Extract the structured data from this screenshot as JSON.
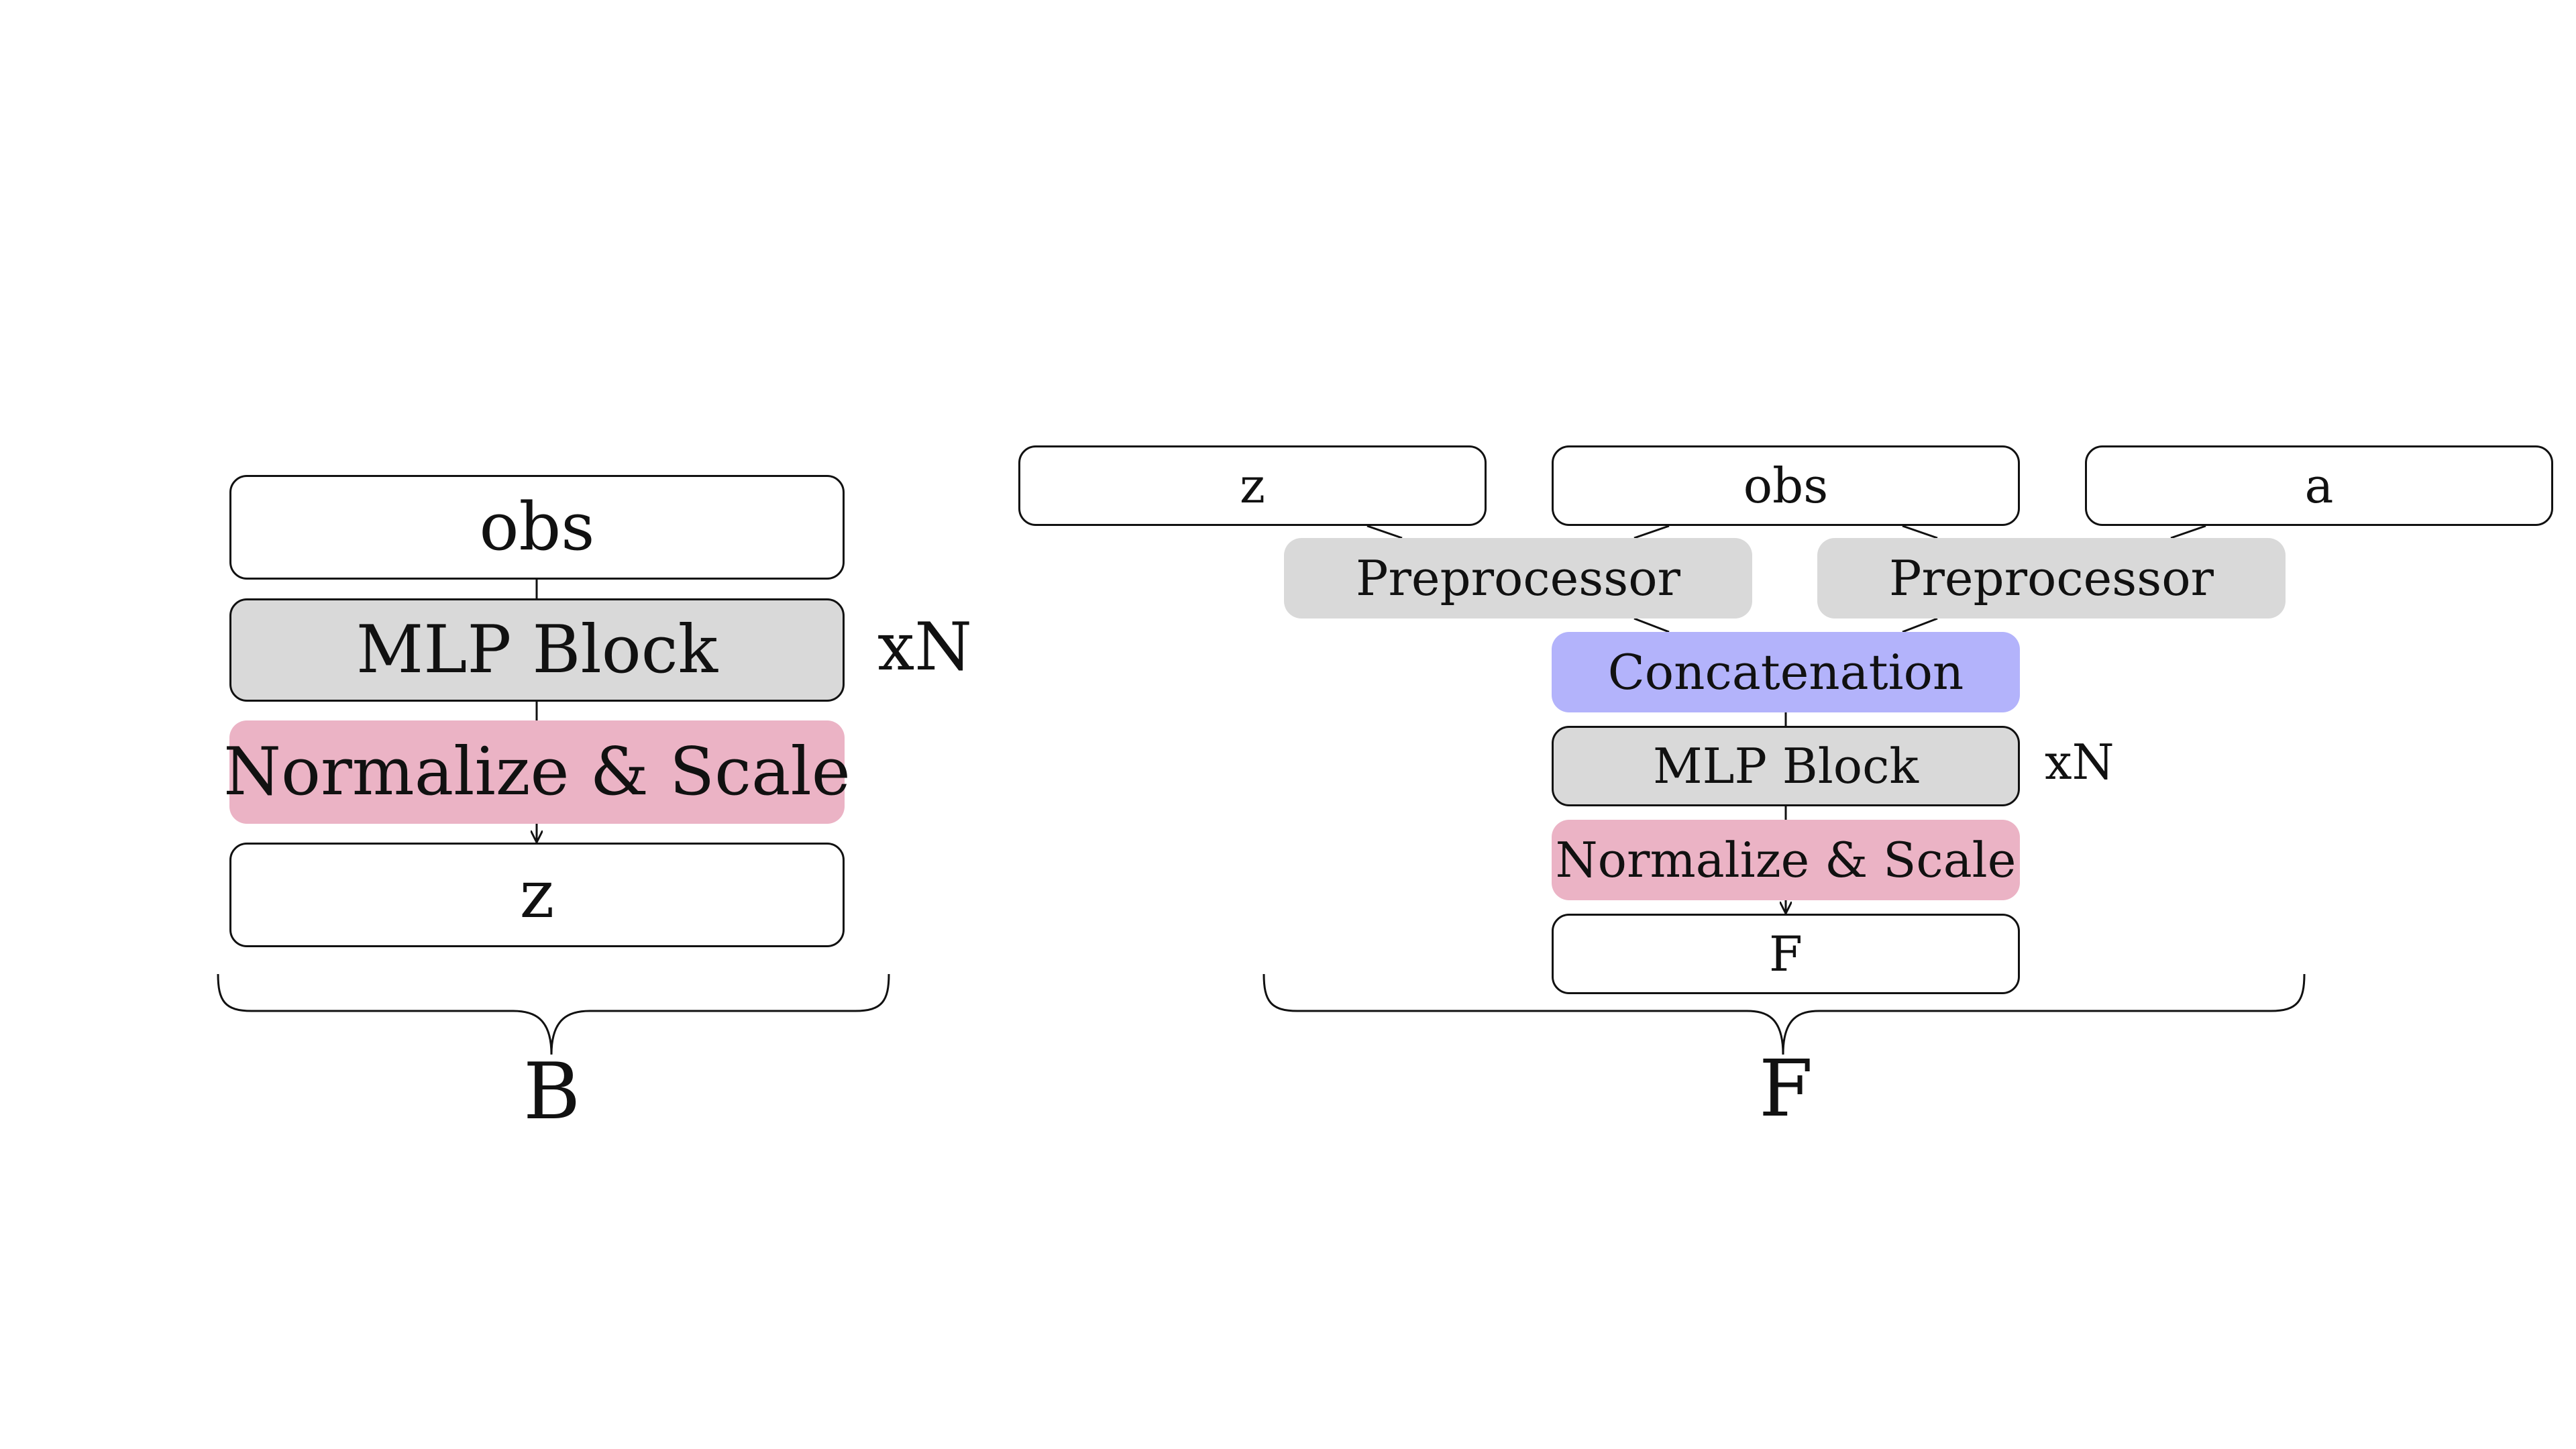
{
  "left": {
    "input": "obs",
    "mlp": "MLP Block",
    "repeat": "xN",
    "norm": "Normalize & Scale",
    "output": "z",
    "brace_label": "B"
  },
  "right": {
    "inputs": [
      "z",
      "obs",
      "a"
    ],
    "preprocessors": [
      "Preprocessor",
      "Preprocessor"
    ],
    "concat": "Concatenation",
    "mlp": "MLP Block",
    "repeat": "xN",
    "norm": "Normalize & Scale",
    "output": "F",
    "brace_label": "F"
  },
  "colors": {
    "mlp": "#d9d9d9",
    "preprocessor": "#d9d9d9",
    "norm": "#ebb3c5",
    "concat": "#b3b3fb"
  }
}
